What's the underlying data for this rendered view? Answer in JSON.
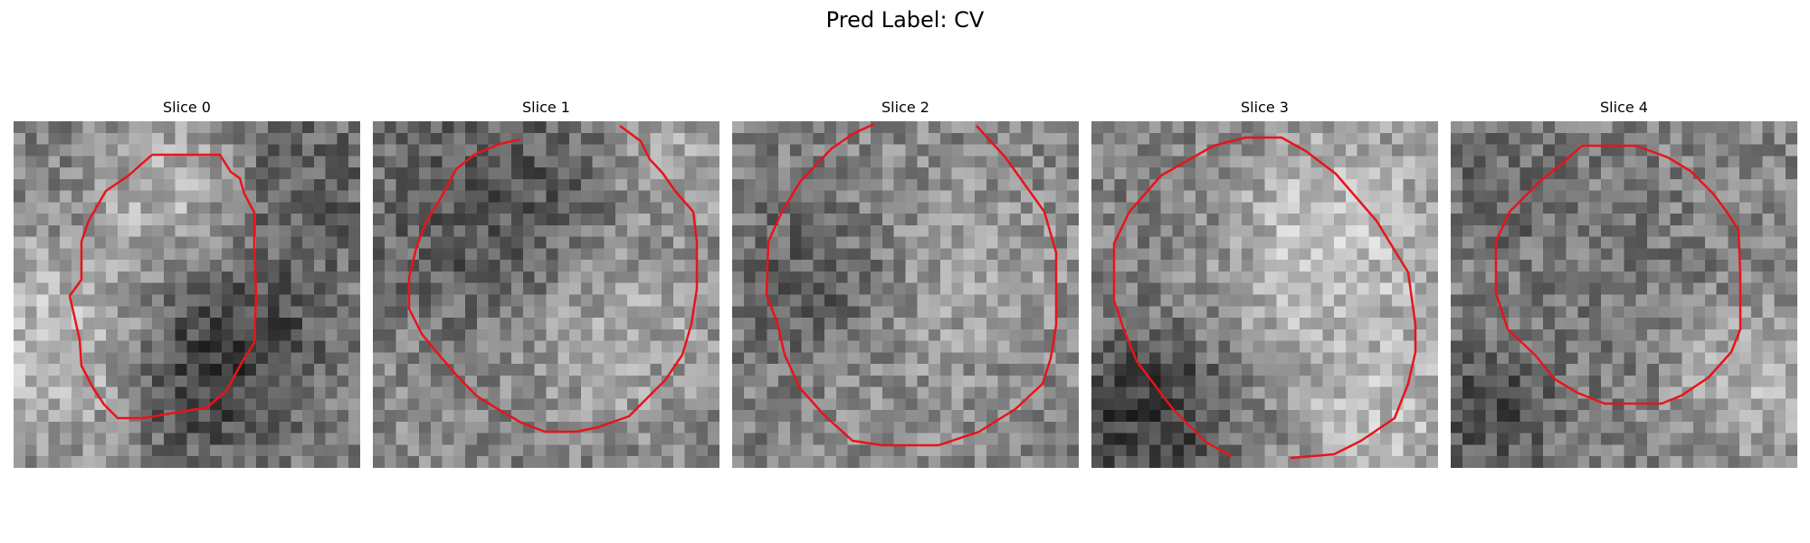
{
  "figure": {
    "title": "Pred Label: CV",
    "contour_color": "#e8141a",
    "colormap": "grayscale"
  },
  "panels": [
    {
      "title": "Slice 0"
    },
    {
      "title": "Slice 1"
    },
    {
      "title": "Slice 2"
    },
    {
      "title": "Slice 3"
    },
    {
      "title": "Slice 4"
    }
  ]
}
